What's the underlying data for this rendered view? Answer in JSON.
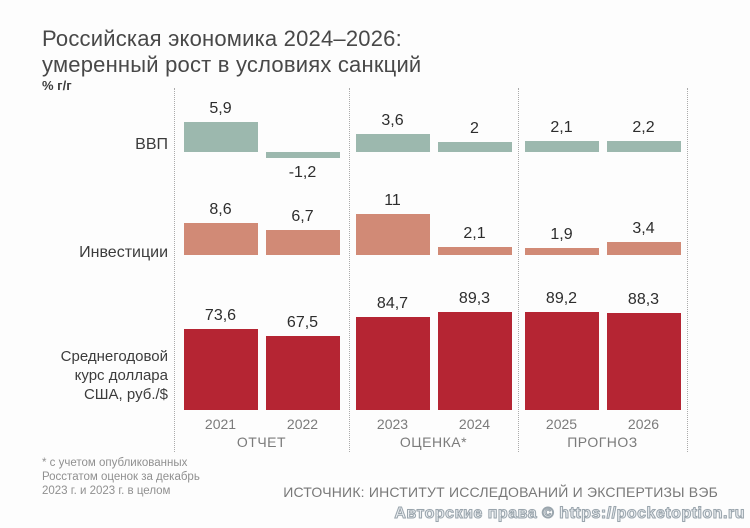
{
  "title": {
    "line1": "Российская экономика 2024–2026:",
    "line2": "умеренный рост в условиях санкций"
  },
  "unit_label": "% г/г",
  "chart_data": {
    "type": "bar",
    "title": "Российская экономика 2024–2026: умеренный рост в условиях санкций",
    "ylabel": "% г/г",
    "categories": [
      "2021",
      "2022",
      "2023",
      "2024",
      "2025",
      "2026"
    ],
    "category_groups": [
      {
        "label": "ОТЧЕТ",
        "span": [
          "2021",
          "2022"
        ]
      },
      {
        "label": "ОЦЕНКА*",
        "span": [
          "2023",
          "2024"
        ]
      },
      {
        "label": "ПРОГНОЗ",
        "span": [
          "2025",
          "2026"
        ]
      }
    ],
    "series": [
      {
        "key": "gdp",
        "name": "ВВП",
        "color": "#9cb8ae",
        "values": [
          5.9,
          -1.2,
          3.6,
          2,
          2.1,
          2.2
        ],
        "value_labels": [
          "5,9",
          "-1,2",
          "3,6",
          "2",
          "2,1",
          "2,2"
        ]
      },
      {
        "key": "investments",
        "name": "Инвестиции",
        "color": "#d18a76",
        "values": [
          8.6,
          6.7,
          11,
          2.1,
          1.9,
          3.4
        ],
        "value_labels": [
          "8,6",
          "6,7",
          "11",
          "2,1",
          "1,9",
          "3,4"
        ]
      },
      {
        "key": "usd",
        "name": "Среднегодовой курс доллара США, руб./$",
        "color": "#b52533",
        "values": [
          73.6,
          67.5,
          84.7,
          89.3,
          89.2,
          88.3
        ],
        "value_labels": [
          "73,6",
          "67,5",
          "84,7",
          "89,3",
          "89,2",
          "88,3"
        ]
      }
    ],
    "grid": "off",
    "legend_position": "left-row-labels",
    "separator_style": "dotted-vertical"
  },
  "row_labels": {
    "gdp": "ВВП",
    "investments": "Инвестиции",
    "usd_line1": "Среднегодовой",
    "usd_line2": "курс доллара",
    "usd_line3": "США, руб./$"
  },
  "footnote": {
    "line1": "* с учетом опубликованных",
    "line2": "Росстатом оценок за декабрь",
    "line3": "2023 г. и 2023 г. в целом"
  },
  "source": "ИСТОЧНИК: ИНСТИТУТ ИССЛЕДОВАНИЙ И ЭКСПЕРТИЗЫ ВЭБ",
  "watermark": "Авторские права © https://pocketoption.ru",
  "colors": {
    "gdp_bar": "#9cb8ae",
    "investments_bar": "#d18a76",
    "usd_bar": "#b52533",
    "text_dark": "#3d3d3d",
    "text_gray": "#7b7b7b",
    "separator": "#ababab",
    "background": "#fdfdfd"
  }
}
